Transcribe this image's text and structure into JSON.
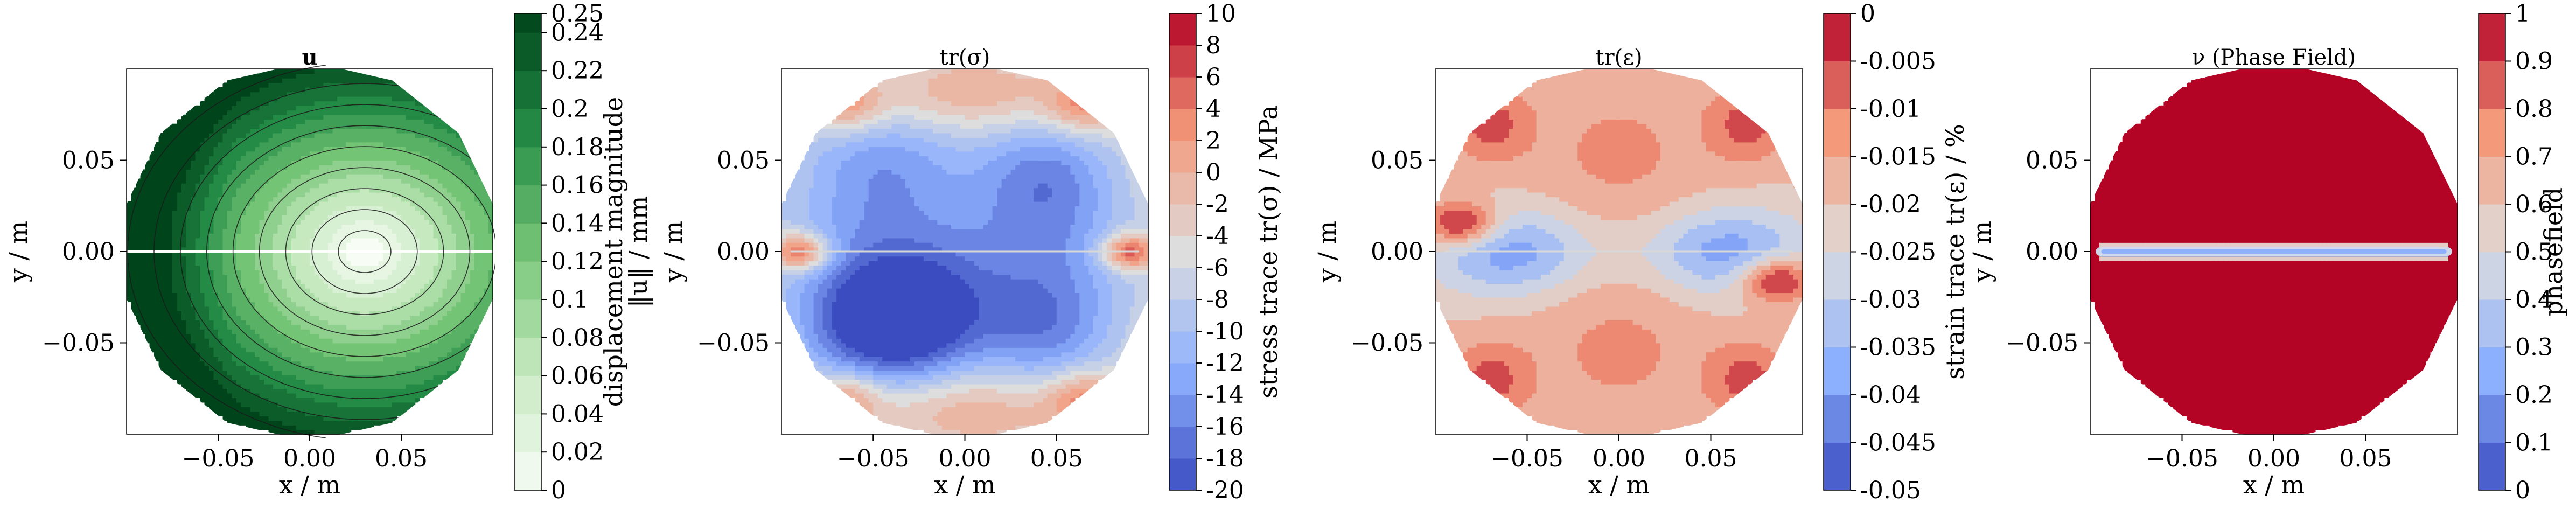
{
  "chart_data": [
    {
      "type": "heatmap",
      "subtype": "filled-contour-with-streamlines",
      "title": "u",
      "xlabel": "x / m",
      "ylabel": "y / m",
      "xlim": [
        -0.1,
        0.1
      ],
      "ylim": [
        -0.1,
        0.1
      ],
      "xticks": [
        "−0.05",
        "0.00",
        "0.05"
      ],
      "yticks": [
        "0.05",
        "0.00",
        "−0.05"
      ],
      "colormap": "Greens",
      "colormap_colors": [
        "#f7fcf5",
        "#c7e9c0",
        "#74c476",
        "#238b45",
        "#00441b"
      ],
      "colorbar": {
        "label": "displacement magnitude ‖u‖ / mm",
        "label_parts": [
          "displacement magnitude",
          "‖u‖ / mm"
        ],
        "min": 0,
        "max": 0.25,
        "ticks": [
          "0.25",
          "0.24",
          "0.22",
          "0.2",
          "0.18",
          "0.16",
          "0.14",
          "0.12",
          "0.1",
          "0.08",
          "0.06",
          "0.04",
          "0.02",
          "0"
        ],
        "tick_values": [
          0.25,
          0.24,
          0.22,
          0.2,
          0.18,
          0.16,
          0.14,
          0.12,
          0.1,
          0.08,
          0.06,
          0.04,
          0.02,
          0
        ]
      },
      "field_description": {
        "minimum_location": [
          0.03,
          0.0
        ],
        "maximum_location": [
          -0.1,
          0.0
        ],
        "crack_along": "y = 0"
      }
    },
    {
      "type": "heatmap",
      "subtype": "filled-contour",
      "title": "tr(σ)",
      "xlabel": "x / m",
      "ylabel": "y / m",
      "xlim": [
        -0.1,
        0.1
      ],
      "ylim": [
        -0.1,
        0.1
      ],
      "xticks": [
        "−0.05",
        "0.00",
        "0.05"
      ],
      "yticks": [
        "0.05",
        "0.00",
        "−0.05"
      ],
      "colormap": "coolwarm",
      "colormap_colors": [
        "#3b4cc0",
        "#8db0fe",
        "#dddddd",
        "#f49a7b",
        "#b40426"
      ],
      "colorbar": {
        "label": "stress trace tr(σ) / MPa",
        "min": -20,
        "max": 10,
        "ticks": [
          "10",
          "8",
          "6",
          "4",
          "2",
          "0",
          "-2",
          "-4",
          "-6",
          "-8",
          "-10",
          "-12",
          "-14",
          "-16",
          "-18",
          "-20"
        ],
        "tick_values": [
          10,
          8,
          6,
          4,
          2,
          0,
          -2,
          -4,
          -6,
          -8,
          -10,
          -12,
          -14,
          -16,
          -18,
          -20
        ]
      }
    },
    {
      "type": "heatmap",
      "subtype": "filled-contour",
      "title": "tr(ε)",
      "xlabel": "x / m",
      "ylabel": "y / m",
      "xlim": [
        -0.1,
        0.1
      ],
      "ylim": [
        -0.1,
        0.1
      ],
      "xticks": [
        "−0.05",
        "0.00",
        "0.05"
      ],
      "yticks": [
        "0.05",
        "0.00",
        "−0.05"
      ],
      "colormap": "coolwarm",
      "colormap_colors": [
        "#3b4cc0",
        "#8db0fe",
        "#dddddd",
        "#f49a7b",
        "#b40426"
      ],
      "colorbar": {
        "label": "strain trace tr(ε) / %",
        "min": -0.05,
        "max": 0,
        "ticks": [
          "0",
          "-0.005",
          "-0.01",
          "-0.015",
          "-0.02",
          "-0.025",
          "-0.03",
          "-0.035",
          "-0.04",
          "-0.045",
          "-0.05"
        ],
        "tick_values": [
          0,
          -0.005,
          -0.01,
          -0.015,
          -0.02,
          -0.025,
          -0.03,
          -0.035,
          -0.04,
          -0.045,
          -0.05
        ]
      }
    },
    {
      "type": "heatmap",
      "subtype": "filled-contour",
      "title": "ν (Phase Field)",
      "xlabel": "x / m",
      "ylabel": "y / m",
      "xlim": [
        -0.1,
        0.1
      ],
      "ylim": [
        -0.1,
        0.1
      ],
      "xticks": [
        "−0.05",
        "0.00",
        "0.05"
      ],
      "yticks": [
        "0.05",
        "0.00",
        "−0.05"
      ],
      "colormap": "coolwarm",
      "colormap_colors": [
        "#3b4cc0",
        "#8db0fe",
        "#dddddd",
        "#f49a7b",
        "#b40426"
      ],
      "colorbar": {
        "label": "phasefield",
        "min": 0,
        "max": 1,
        "ticks": [
          "1",
          "0.9",
          "0.8",
          "0.7",
          "0.6",
          "0.5",
          "0.4",
          "0.3",
          "0.2",
          "0.1",
          "0"
        ],
        "tick_values": [
          1,
          0.9,
          0.8,
          0.7,
          0.6,
          0.5,
          0.4,
          0.3,
          0.2,
          0.1,
          0
        ]
      },
      "field_description": {
        "bulk_value": 1,
        "crack_value": 0,
        "crack_along": "y = 0"
      }
    }
  ]
}
